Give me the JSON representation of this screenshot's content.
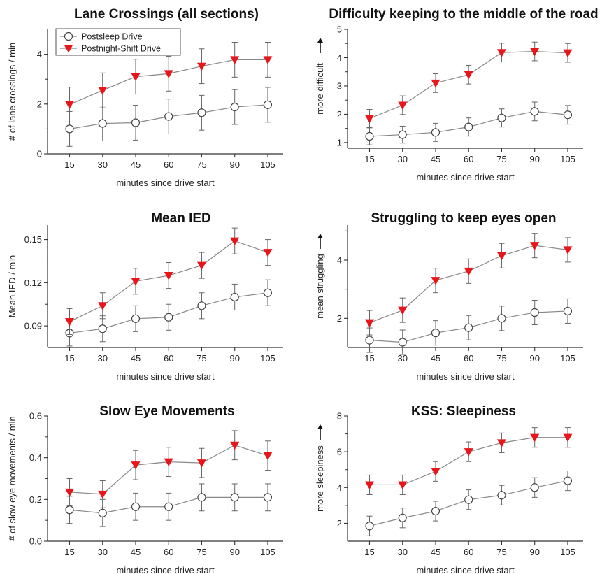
{
  "chart_data": [
    {
      "type": "line",
      "title": "Lane Crossings (all sections)",
      "xlabel": "minutes since drive start",
      "ylabel": "# of lane crossings / min",
      "x": [
        15,
        30,
        45,
        60,
        75,
        90,
        105
      ],
      "ylim": [
        0,
        5
      ],
      "yticks": [
        0,
        2,
        4
      ],
      "legend": "top-left",
      "series": [
        {
          "name": "Postsleep Drive",
          "marker": "open-circle",
          "color": "#555555",
          "values": [
            1.0,
            1.22,
            1.25,
            1.5,
            1.65,
            1.88,
            1.97
          ],
          "err": [
            0.7,
            0.7,
            0.7,
            0.7,
            0.7,
            0.7,
            0.7
          ]
        },
        {
          "name": "Postnight-Shift Drive",
          "marker": "red-down-triangle",
          "color": "#e8151a",
          "values": [
            1.98,
            2.55,
            3.1,
            3.22,
            3.52,
            3.78,
            3.78
          ],
          "err": [
            0.7,
            0.7,
            0.7,
            0.7,
            0.7,
            0.7,
            0.7
          ]
        }
      ]
    },
    {
      "type": "line",
      "title": "Difficulty keeping to the middle of the road",
      "xlabel": "minutes since drive start",
      "ylabel": "more difficult",
      "x": [
        15,
        30,
        45,
        60,
        75,
        90,
        105
      ],
      "ylim": [
        0.8,
        5
      ],
      "yticks": [
        1,
        2,
        3,
        4,
        5
      ],
      "series": [
        {
          "name": "Postsleep Drive",
          "marker": "open-circle",
          "color": "#555555",
          "values": [
            1.22,
            1.28,
            1.36,
            1.55,
            1.87,
            2.1,
            1.98
          ],
          "err": [
            0.3,
            0.3,
            0.32,
            0.32,
            0.32,
            0.33,
            0.33
          ]
        },
        {
          "name": "Postnight-Shift Drive",
          "marker": "red-down-triangle",
          "color": "#e8151a",
          "values": [
            1.85,
            2.32,
            3.1,
            3.4,
            4.18,
            4.22,
            4.17
          ],
          "err": [
            0.32,
            0.33,
            0.33,
            0.33,
            0.33,
            0.33,
            0.33
          ]
        }
      ]
    },
    {
      "type": "line",
      "title": "Mean IED",
      "xlabel": "minutes since drive start",
      "ylabel": "Mean IED / min",
      "x": [
        15,
        30,
        45,
        60,
        75,
        90,
        105
      ],
      "ylim": [
        0.075,
        0.16
      ],
      "yticks": [
        0.09,
        0.12,
        0.15
      ],
      "series": [
        {
          "name": "Postsleep Drive",
          "marker": "open-circle",
          "color": "#555555",
          "values": [
            0.085,
            0.088,
            0.095,
            0.096,
            0.104,
            0.11,
            0.113
          ],
          "err": [
            0.009,
            0.009,
            0.009,
            0.009,
            0.009,
            0.009,
            0.009
          ]
        },
        {
          "name": "Postnight-Shift Drive",
          "marker": "red-down-triangle",
          "color": "#e8151a",
          "values": [
            0.093,
            0.104,
            0.121,
            0.125,
            0.132,
            0.149,
            0.141
          ],
          "err": [
            0.009,
            0.009,
            0.009,
            0.009,
            0.009,
            0.009,
            0.009
          ]
        }
      ]
    },
    {
      "type": "line",
      "title": "Struggling to keep eyes open",
      "xlabel": "minutes since drive start",
      "ylabel": "mean struggling",
      "x": [
        15,
        30,
        45,
        60,
        75,
        90,
        105
      ],
      "ylim": [
        1.0,
        5.2
      ],
      "yticks": [
        2,
        4
      ],
      "series": [
        {
          "name": "Postsleep Drive",
          "marker": "open-circle",
          "color": "#555555",
          "values": [
            1.25,
            1.18,
            1.5,
            1.68,
            2.0,
            2.2,
            2.25
          ],
          "err": [
            0.42,
            0.42,
            0.42,
            0.42,
            0.42,
            0.42,
            0.42
          ]
        },
        {
          "name": "Postnight-Shift Drive",
          "marker": "red-down-triangle",
          "color": "#e8151a",
          "values": [
            1.85,
            2.28,
            3.3,
            3.62,
            4.15,
            4.5,
            4.35
          ],
          "err": [
            0.42,
            0.42,
            0.42,
            0.42,
            0.42,
            0.42,
            0.42
          ]
        }
      ]
    },
    {
      "type": "line",
      "title": "Slow Eye Movements",
      "xlabel": "minutes since drive start",
      "ylabel": "# of slow eye movements / min",
      "x": [
        15,
        30,
        45,
        60,
        75,
        90,
        105
      ],
      "ylim": [
        0,
        0.6
      ],
      "yticks": [
        0.0,
        0.2,
        0.4,
        0.6
      ],
      "series": [
        {
          "name": "Postsleep Drive",
          "marker": "open-circle",
          "color": "#555555",
          "values": [
            0.15,
            0.135,
            0.165,
            0.165,
            0.21,
            0.21,
            0.21
          ],
          "err": [
            0.065,
            0.065,
            0.065,
            0.065,
            0.065,
            0.065,
            0.065
          ]
        },
        {
          "name": "Postnight-Shift Drive",
          "marker": "red-down-triangle",
          "color": "#e8151a",
          "values": [
            0.235,
            0.225,
            0.365,
            0.38,
            0.375,
            0.46,
            0.41
          ],
          "err": [
            0.065,
            0.065,
            0.07,
            0.07,
            0.07,
            0.07,
            0.07
          ]
        }
      ]
    },
    {
      "type": "line",
      "title": "KSS: Sleepiness",
      "xlabel": "minutes since drive start",
      "ylabel": "more sleepiness",
      "x": [
        15,
        30,
        45,
        60,
        75,
        90,
        105
      ],
      "ylim": [
        1.0,
        8
      ],
      "yticks": [
        2,
        4,
        6,
        8
      ],
      "series": [
        {
          "name": "Postsleep Drive",
          "marker": "open-circle",
          "color": "#555555",
          "values": [
            1.85,
            2.3,
            2.68,
            3.32,
            3.57,
            4.0,
            4.38
          ],
          "err": [
            0.55,
            0.55,
            0.55,
            0.55,
            0.55,
            0.55,
            0.55
          ]
        },
        {
          "name": "Postnight-Shift Drive",
          "marker": "red-down-triangle",
          "color": "#e8151a",
          "values": [
            4.15,
            4.15,
            4.9,
            6.0,
            6.5,
            6.8,
            6.8
          ],
          "err": [
            0.55,
            0.55,
            0.55,
            0.55,
            0.55,
            0.55,
            0.55
          ]
        }
      ]
    }
  ]
}
